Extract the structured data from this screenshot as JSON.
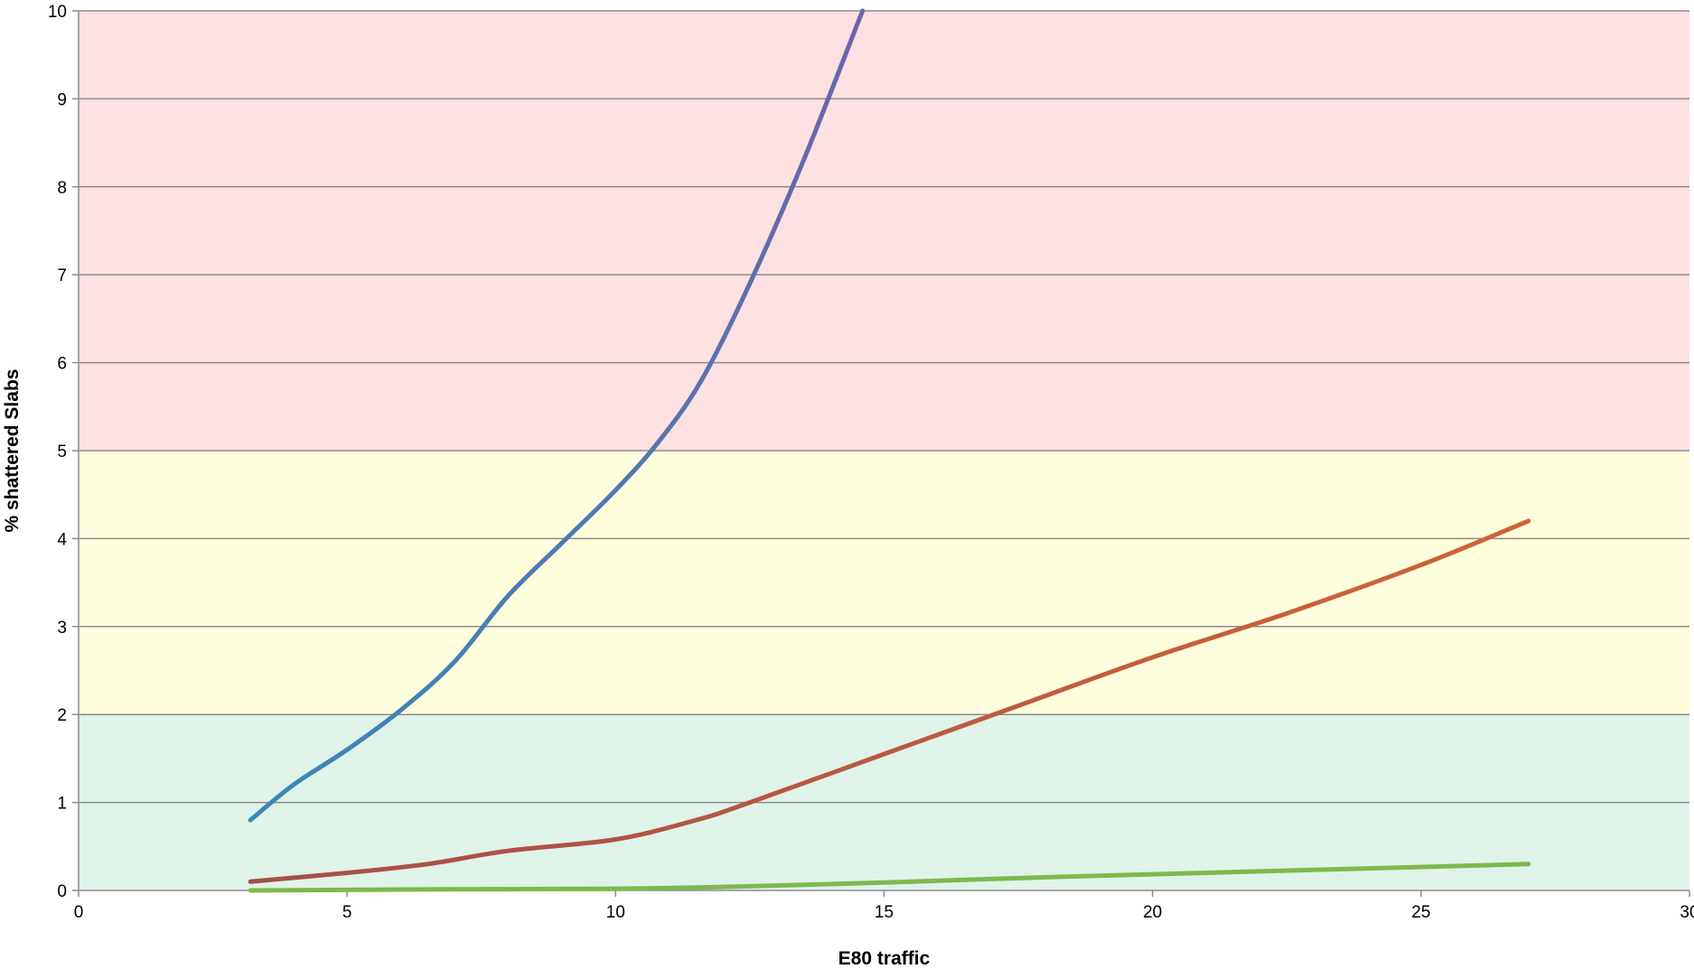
{
  "chart_data": {
    "type": "line",
    "title": "",
    "xlabel": "E80 traffic",
    "ylabel": "% shattered Slabs",
    "xlim": [
      0,
      30
    ],
    "ylim": [
      0,
      10
    ],
    "x_ticks": [
      0,
      5,
      10,
      15,
      20,
      25,
      30
    ],
    "y_ticks": [
      0,
      1,
      2,
      3,
      4,
      5,
      6,
      7,
      8,
      9,
      10
    ],
    "grid": "horizontal",
    "legend": "none",
    "bands": [
      {
        "y0": 0,
        "y1": 2,
        "color": "#dff3e8"
      },
      {
        "y0": 2,
        "y1": 5,
        "color": "#fefedd"
      },
      {
        "y0": 5,
        "y1": 10,
        "color": "#fde0e2"
      }
    ],
    "series": [
      {
        "color_start": "#3b87b9",
        "color_end": "#6b65a8",
        "points": [
          [
            3.2,
            0.8
          ],
          [
            4.0,
            1.2
          ],
          [
            5.0,
            1.6
          ],
          [
            6.0,
            2.05
          ],
          [
            7.0,
            2.6
          ],
          [
            8.0,
            3.35
          ],
          [
            9.0,
            3.95
          ],
          [
            10.0,
            4.55
          ],
          [
            10.8,
            5.1
          ],
          [
            11.6,
            5.8
          ],
          [
            12.5,
            6.9
          ],
          [
            13.5,
            8.3
          ],
          [
            14.6,
            10.0
          ]
        ]
      },
      {
        "color_start": "#a54e4a",
        "color_end": "#d06338",
        "points": [
          [
            3.2,
            0.1
          ],
          [
            5.0,
            0.2
          ],
          [
            6.5,
            0.3
          ],
          [
            8.0,
            0.45
          ],
          [
            10.0,
            0.58
          ],
          [
            11.5,
            0.8
          ],
          [
            12.5,
            1.0
          ],
          [
            15.0,
            1.55
          ],
          [
            17.5,
            2.1
          ],
          [
            20.0,
            2.65
          ],
          [
            22.5,
            3.15
          ],
          [
            25.0,
            3.7
          ],
          [
            27.0,
            4.2
          ]
        ]
      },
      {
        "color_start": "#7eb84e",
        "color_end": "#7eb84e",
        "points": [
          [
            3.2,
            0.0
          ],
          [
            6.0,
            0.01
          ],
          [
            10.0,
            0.02
          ],
          [
            12.0,
            0.04
          ],
          [
            15.0,
            0.09
          ],
          [
            18.0,
            0.15
          ],
          [
            21.0,
            0.2
          ],
          [
            24.0,
            0.25
          ],
          [
            27.0,
            0.3
          ]
        ]
      }
    ]
  }
}
